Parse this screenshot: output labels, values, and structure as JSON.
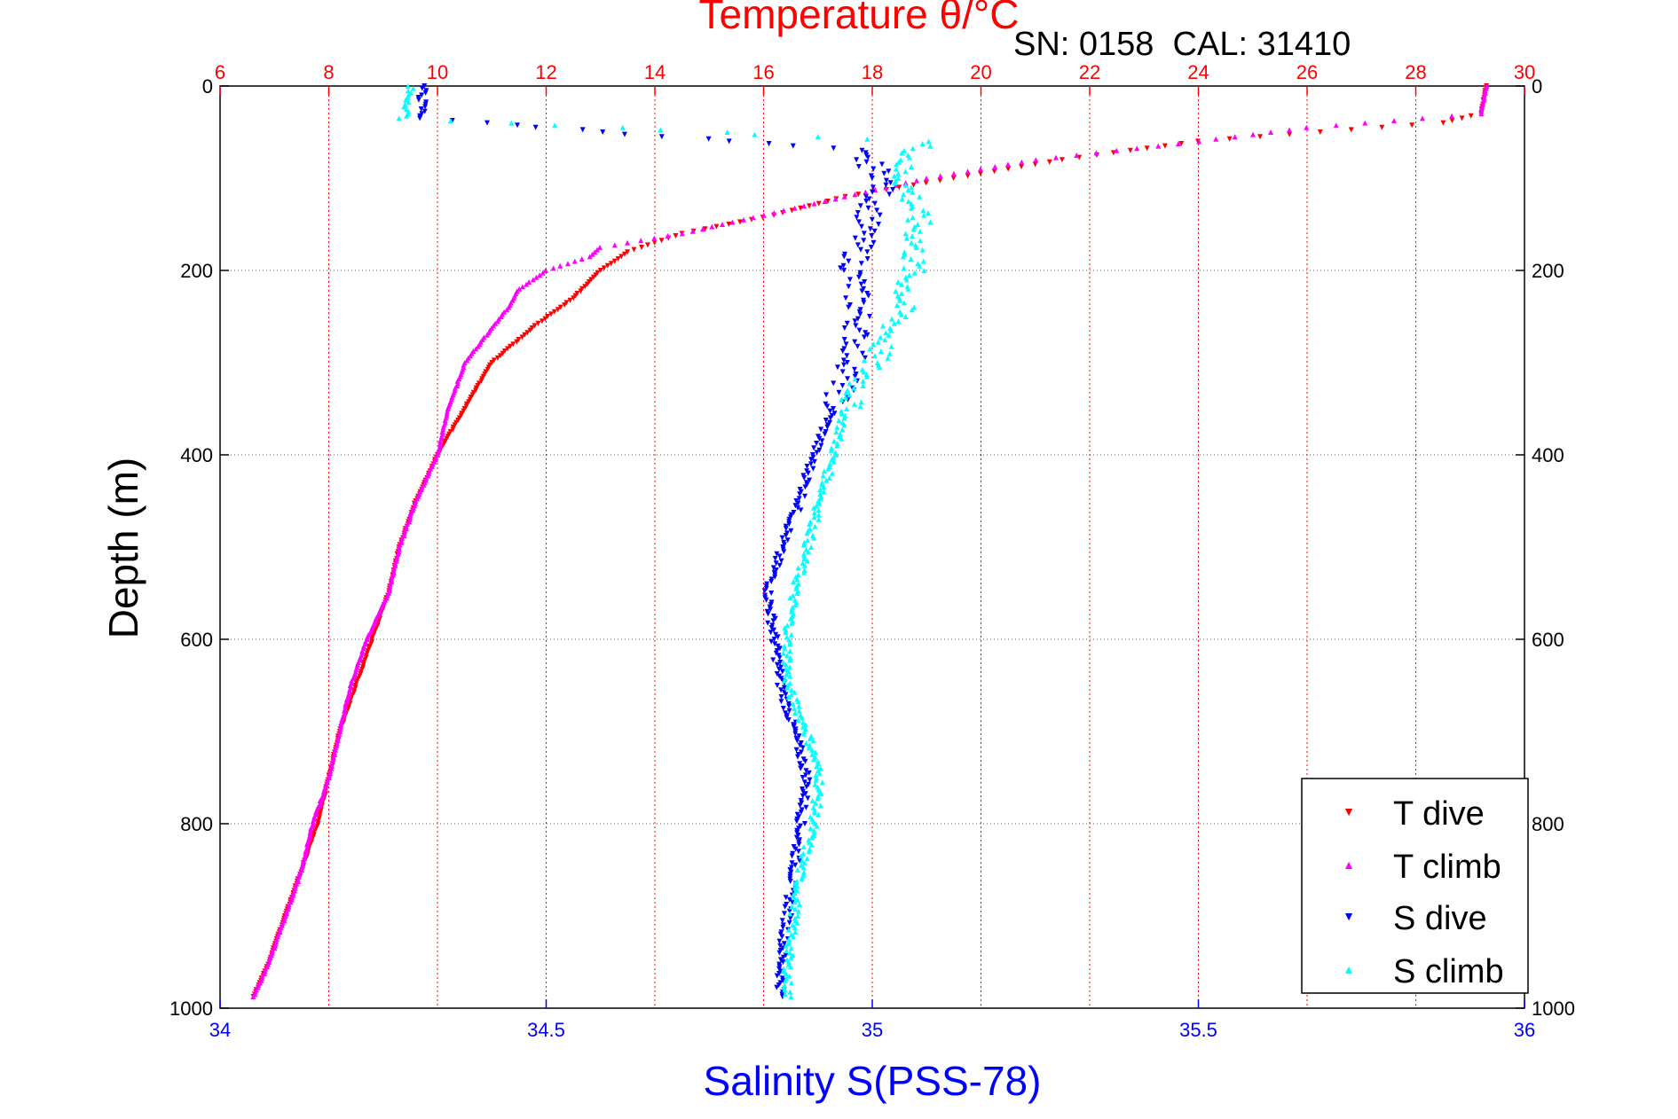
{
  "chart_data": {
    "type": "scatter",
    "title": "Temperature θ/°C",
    "annotation": "SN: 0158  CAL: 31410",
    "xlabel_bottom": "Salinity S(PSS-78)",
    "xlabel_top": "Temperature θ/°C",
    "ylabel": "Depth (m)",
    "ylim": [
      0,
      1000
    ],
    "y_reversed": true,
    "xlim_salinity": [
      34,
      36
    ],
    "xlim_temperature": [
      6,
      30
    ],
    "salinity_ticks": [
      "34",
      "34.5",
      "35",
      "35.5",
      "36"
    ],
    "temperature_ticks": [
      "6",
      "8",
      "10",
      "12",
      "14",
      "16",
      "18",
      "20",
      "22",
      "24",
      "26",
      "28",
      "30"
    ],
    "depth_ticks": [
      "0",
      "200",
      "400",
      "600",
      "800",
      "1000"
    ],
    "grid": true,
    "legend_position": "bottom-right",
    "colors": {
      "t_dive": "#ff0000",
      "t_climb": "#ff00ff",
      "s_dive": "#0000ff",
      "s_climb": "#00ffff",
      "salinity_axis": "#0000ff",
      "temperature_axis": "#ff0000"
    },
    "series": [
      {
        "name": "T dive",
        "axis": "temperature",
        "marker": "triangle-down",
        "depth": [
          0,
          30,
          40,
          60,
          80,
          100,
          120,
          140,
          160,
          180,
          200,
          230,
          260,
          300,
          350,
          400,
          450,
          500,
          550,
          600,
          650,
          700,
          750,
          800,
          850,
          900,
          950,
          990
        ],
        "values": [
          29.3,
          29.2,
          28.5,
          24.0,
          21.5,
          19.5,
          17.5,
          16.2,
          14.5,
          13.5,
          13.0,
          12.5,
          11.8,
          11.0,
          10.5,
          10.0,
          9.6,
          9.3,
          9.1,
          8.8,
          8.5,
          8.2,
          8.0,
          7.8,
          7.5,
          7.2,
          6.9,
          6.6
        ]
      },
      {
        "name": "T climb",
        "axis": "temperature",
        "marker": "triangle-up",
        "depth": [
          0,
          30,
          45,
          60,
          80,
          100,
          120,
          140,
          160,
          175,
          185,
          200,
          220,
          240,
          270,
          300,
          350,
          400,
          450,
          500,
          550,
          600,
          650,
          700,
          750,
          800,
          850,
          900,
          950,
          990
        ],
        "values": [
          29.3,
          29.2,
          26.0,
          24.0,
          21.0,
          19.0,
          17.5,
          16.0,
          14.5,
          13.0,
          12.8,
          12.0,
          11.5,
          11.3,
          10.9,
          10.5,
          10.2,
          10.0,
          9.6,
          9.3,
          9.1,
          8.7,
          8.4,
          8.2,
          8.0,
          7.7,
          7.5,
          7.2,
          6.9,
          6.6
        ]
      },
      {
        "name": "S dive",
        "axis": "salinity",
        "marker": "triangle-down",
        "depth": [
          0,
          20,
          35,
          70,
          100,
          150,
          200,
          250,
          300,
          350,
          400,
          450,
          500,
          550,
          600,
          650,
          700,
          750,
          800,
          850,
          900,
          950,
          990
        ],
        "values": [
          34.31,
          34.31,
          34.31,
          34.97,
          35.02,
          34.99,
          34.97,
          34.98,
          34.97,
          34.94,
          34.91,
          34.89,
          34.86,
          34.84,
          34.85,
          34.86,
          34.88,
          34.9,
          34.89,
          34.88,
          34.87,
          34.86,
          34.86
        ]
      },
      {
        "name": "S climb",
        "axis": "salinity",
        "marker": "triangle-up",
        "depth": [
          0,
          20,
          35,
          60,
          90,
          120,
          150,
          200,
          250,
          300,
          350,
          400,
          450,
          500,
          550,
          600,
          650,
          700,
          750,
          800,
          850,
          900,
          950,
          990
        ],
        "values": [
          34.29,
          34.29,
          34.28,
          35.08,
          35.04,
          35.06,
          35.07,
          35.06,
          35.04,
          35.0,
          34.96,
          34.94,
          34.92,
          34.9,
          34.88,
          34.87,
          34.87,
          34.9,
          34.92,
          34.91,
          34.89,
          34.88,
          34.87,
          34.87
        ]
      }
    ]
  }
}
